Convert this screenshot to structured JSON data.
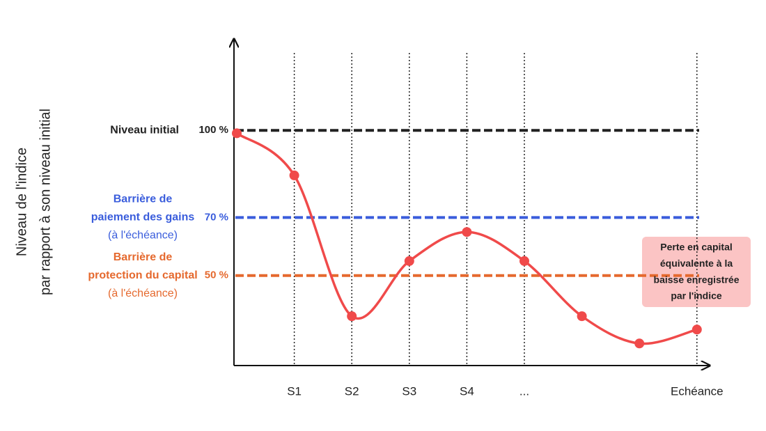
{
  "chart_data": {
    "type": "line",
    "ylabel": [
      "Niveau de l'indice",
      "par rapport à son niveau initial"
    ],
    "categories": [
      null,
      "S1",
      "S2",
      "S3",
      "S4",
      "...",
      null,
      null,
      "Echéance"
    ],
    "series": [
      {
        "color": "#f04a4a",
        "values": [
          99,
          84.5,
          36,
          55,
          65,
          55,
          36,
          26.6,
          31.4
        ]
      }
    ],
    "ylim": [
      19,
      131
    ],
    "reference_lines": [
      {
        "label": [
          "Niveau initial"
        ],
        "value": 100,
        "value_label": "100 %",
        "color": "#222222"
      },
      {
        "label": [
          "Barrière de",
          "paiement des gains",
          "(à l'échéance)"
        ],
        "value": 70,
        "value_label": "70 %",
        "color": "#3a5ddc"
      },
      {
        "label": [
          "Barrière de",
          "protection du capital",
          "(à l'échéance)"
        ],
        "value": 50,
        "value_label": "50 %",
        "color": "#e5692e"
      }
    ],
    "annotation": [
      "Perte en capital",
      "équivalente à la",
      "baisse enregistrée",
      "par l'indice"
    ]
  }
}
